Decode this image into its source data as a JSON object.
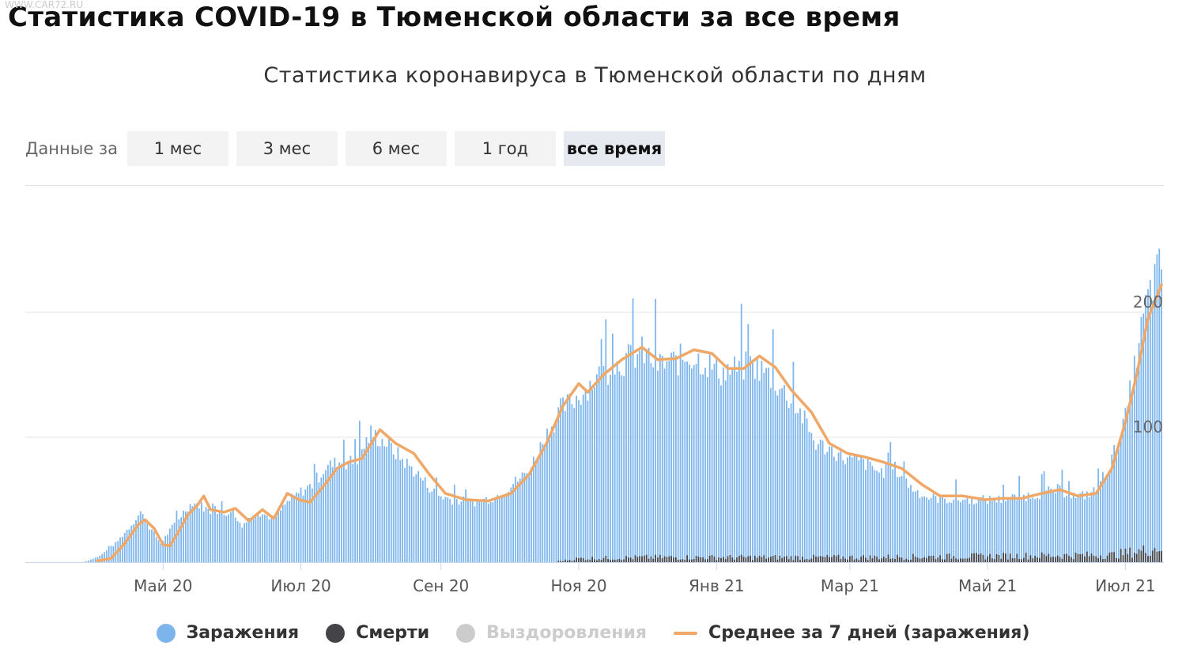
{
  "page": {
    "heading": "Статистика COVID-19 в Тюменской области за все время",
    "watermark": "WWW.CAR72.RU"
  },
  "controls": {
    "label": "Данные за",
    "ranges": [
      "1 мес",
      "3 мес",
      "6 мес",
      "1 год",
      "все время"
    ],
    "active": "все время"
  },
  "colors": {
    "infections": "#7cb5ec",
    "deaths": "#434348",
    "recoveries": "#cccccc",
    "average": "#f0a868",
    "grid": "#e6e6e6"
  },
  "chart_data": {
    "type": "bar",
    "title": "Статистика коронавируса в Тюменской области по дням",
    "x_range": [
      "2020-03-01",
      "2021-07-17"
    ],
    "ylim": [
      0,
      240
    ],
    "y_ticks": [
      100,
      200
    ],
    "x_ticks": [
      {
        "date": "2020-05-01",
        "label": "Май 20"
      },
      {
        "date": "2020-07-01",
        "label": "Июл 20"
      },
      {
        "date": "2020-09-01",
        "label": "Сен 20"
      },
      {
        "date": "2020-11-01",
        "label": "Ноя 20"
      },
      {
        "date": "2021-01-01",
        "label": "Янв 21"
      },
      {
        "date": "2021-03-01",
        "label": "Мар 21"
      },
      {
        "date": "2021-05-01",
        "label": "Май 21"
      },
      {
        "date": "2021-07-01",
        "label": "Июл 21"
      }
    ],
    "legend_position": "bottom",
    "series": [
      {
        "name": "Заражения",
        "kind": "bar",
        "visible": true,
        "anchors": [
          [
            "2020-03-01",
            0
          ],
          [
            "2020-03-27",
            0
          ],
          [
            "2020-04-03",
            5
          ],
          [
            "2020-04-10",
            15
          ],
          [
            "2020-04-17",
            30
          ],
          [
            "2020-04-21",
            40
          ],
          [
            "2020-04-25",
            28
          ],
          [
            "2020-04-30",
            15
          ],
          [
            "2020-05-05",
            28
          ],
          [
            "2020-05-10",
            40
          ],
          [
            "2020-05-14",
            48
          ],
          [
            "2020-05-18",
            45
          ],
          [
            "2020-05-24",
            38
          ],
          [
            "2020-05-30",
            40
          ],
          [
            "2020-06-05",
            30
          ],
          [
            "2020-06-12",
            40
          ],
          [
            "2020-06-19",
            35
          ],
          [
            "2020-06-25",
            48
          ],
          [
            "2020-06-30",
            55
          ],
          [
            "2020-07-06",
            62
          ],
          [
            "2020-07-12",
            76
          ],
          [
            "2020-07-18",
            80
          ],
          [
            "2020-07-25",
            80
          ],
          [
            "2020-08-01",
            103
          ],
          [
            "2020-08-08",
            95
          ],
          [
            "2020-08-15",
            82
          ],
          [
            "2020-08-22",
            70
          ],
          [
            "2020-08-30",
            54
          ],
          [
            "2020-09-06",
            50
          ],
          [
            "2020-09-15",
            48
          ],
          [
            "2020-09-25",
            52
          ],
          [
            "2020-10-03",
            63
          ],
          [
            "2020-10-10",
            73
          ],
          [
            "2020-10-17",
            100
          ],
          [
            "2020-10-24",
            122
          ],
          [
            "2020-11-01",
            133
          ],
          [
            "2020-11-08",
            146
          ],
          [
            "2020-11-15",
            155
          ],
          [
            "2020-11-22",
            162
          ],
          [
            "2020-11-29",
            168
          ],
          [
            "2020-12-06",
            158
          ],
          [
            "2020-12-13",
            160
          ],
          [
            "2020-12-20",
            165
          ],
          [
            "2020-12-27",
            160
          ],
          [
            "2021-01-03",
            152
          ],
          [
            "2021-01-10",
            155
          ],
          [
            "2021-01-17",
            158
          ],
          [
            "2021-01-24",
            150
          ],
          [
            "2021-01-31",
            136
          ],
          [
            "2021-02-07",
            120
          ],
          [
            "2021-02-14",
            95
          ],
          [
            "2021-02-21",
            90
          ],
          [
            "2021-02-28",
            82
          ],
          [
            "2021-03-07",
            80
          ],
          [
            "2021-03-14",
            72
          ],
          [
            "2021-03-21",
            75
          ],
          [
            "2021-03-28",
            60
          ],
          [
            "2021-04-04",
            52
          ],
          [
            "2021-04-15",
            50
          ],
          [
            "2021-04-25",
            50
          ],
          [
            "2021-05-05",
            50
          ],
          [
            "2021-05-15",
            52
          ],
          [
            "2021-05-25",
            55
          ],
          [
            "2021-06-01",
            58
          ],
          [
            "2021-06-10",
            52
          ],
          [
            "2021-06-18",
            57
          ],
          [
            "2021-06-25",
            82
          ],
          [
            "2021-07-01",
            115
          ],
          [
            "2021-07-06",
            165
          ],
          [
            "2021-07-10",
            205
          ],
          [
            "2021-07-14",
            228
          ],
          [
            "2021-07-17",
            238
          ]
        ]
      },
      {
        "name": "Смерти",
        "kind": "bar",
        "visible": true,
        "anchors": [
          [
            "2020-03-01",
            0
          ],
          [
            "2020-10-20",
            0
          ],
          [
            "2020-11-01",
            3
          ],
          [
            "2020-12-01",
            4
          ],
          [
            "2021-01-15",
            4
          ],
          [
            "2021-03-01",
            4
          ],
          [
            "2021-05-01",
            5
          ],
          [
            "2021-06-25",
            6
          ],
          [
            "2021-07-10",
            10
          ],
          [
            "2021-07-17",
            13
          ]
        ]
      },
      {
        "name": "Выздоровления",
        "kind": "bar",
        "visible": false
      },
      {
        "name": "Среднее за 7 дней (заражения)",
        "kind": "line",
        "visible": true,
        "anchors": [
          [
            "2020-04-02",
            1
          ],
          [
            "2020-04-08",
            3
          ],
          [
            "2020-04-14",
            15
          ],
          [
            "2020-04-20",
            30
          ],
          [
            "2020-04-23",
            34
          ],
          [
            "2020-04-27",
            27
          ],
          [
            "2020-05-01",
            14
          ],
          [
            "2020-05-04",
            13
          ],
          [
            "2020-05-08",
            25
          ],
          [
            "2020-05-12",
            38
          ],
          [
            "2020-05-16",
            45
          ],
          [
            "2020-05-19",
            53
          ],
          [
            "2020-05-22",
            42
          ],
          [
            "2020-05-28",
            40
          ],
          [
            "2020-06-02",
            43
          ],
          [
            "2020-06-08",
            33
          ],
          [
            "2020-06-14",
            42
          ],
          [
            "2020-06-19",
            35
          ],
          [
            "2020-06-25",
            55
          ],
          [
            "2020-06-30",
            50
          ],
          [
            "2020-07-05",
            48
          ],
          [
            "2020-07-12",
            63
          ],
          [
            "2020-07-17",
            75
          ],
          [
            "2020-07-22",
            80
          ],
          [
            "2020-07-28",
            83
          ],
          [
            "2020-08-05",
            106
          ],
          [
            "2020-08-12",
            95
          ],
          [
            "2020-08-20",
            87
          ],
          [
            "2020-08-27",
            70
          ],
          [
            "2020-09-03",
            55
          ],
          [
            "2020-09-12",
            50
          ],
          [
            "2020-09-22",
            49
          ],
          [
            "2020-10-02",
            55
          ],
          [
            "2020-10-10",
            70
          ],
          [
            "2020-10-18",
            96
          ],
          [
            "2020-10-25",
            125
          ],
          [
            "2020-11-01",
            143
          ],
          [
            "2020-11-05",
            136
          ],
          [
            "2020-11-12",
            150
          ],
          [
            "2020-11-20",
            162
          ],
          [
            "2020-11-29",
            172
          ],
          [
            "2020-12-06",
            162
          ],
          [
            "2020-12-14",
            163
          ],
          [
            "2020-12-22",
            170
          ],
          [
            "2020-12-30",
            167
          ],
          [
            "2021-01-06",
            155
          ],
          [
            "2021-01-13",
            155
          ],
          [
            "2021-01-20",
            165
          ],
          [
            "2021-01-27",
            156
          ],
          [
            "2021-02-03",
            138
          ],
          [
            "2021-02-12",
            120
          ],
          [
            "2021-02-20",
            95
          ],
          [
            "2021-02-28",
            87
          ],
          [
            "2021-03-08",
            84
          ],
          [
            "2021-03-16",
            80
          ],
          [
            "2021-03-24",
            75
          ],
          [
            "2021-04-02",
            62
          ],
          [
            "2021-04-10",
            53
          ],
          [
            "2021-04-20",
            53
          ],
          [
            "2021-04-30",
            50
          ],
          [
            "2021-05-08",
            51
          ],
          [
            "2021-05-16",
            51
          ],
          [
            "2021-05-25",
            55
          ],
          [
            "2021-06-02",
            58
          ],
          [
            "2021-06-10",
            53
          ],
          [
            "2021-06-18",
            55
          ],
          [
            "2021-06-25",
            75
          ],
          [
            "2021-07-01",
            112
          ],
          [
            "2021-07-06",
            150
          ],
          [
            "2021-07-11",
            195
          ],
          [
            "2021-07-17",
            222
          ]
        ]
      }
    ]
  }
}
